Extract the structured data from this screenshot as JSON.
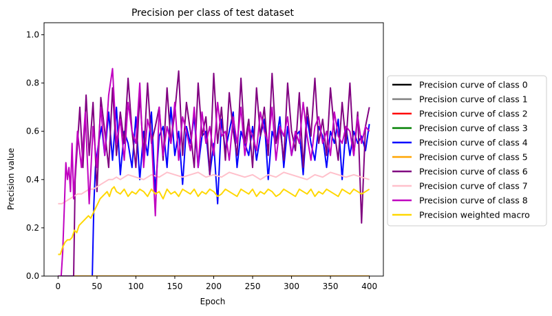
{
  "chart_data": {
    "type": "line",
    "title": "Precision per class of test dataset",
    "xlabel": "Epoch",
    "ylabel": "Precision value",
    "xlim": [
      -18,
      418
    ],
    "ylim": [
      0.0,
      1.05
    ],
    "xticks": [
      0,
      50,
      100,
      150,
      200,
      250,
      300,
      350,
      400
    ],
    "yticks": [
      0.0,
      0.2,
      0.4,
      0.6,
      0.8,
      1.0
    ],
    "xtick_labels": [
      "0",
      "50",
      "100",
      "150",
      "200",
      "250",
      "300",
      "350",
      "400"
    ],
    "ytick_labels": [
      "0.0",
      "0.2",
      "0.4",
      "0.6",
      "0.8",
      "1.0"
    ],
    "grid": false,
    "legend_position": "outside-right",
    "series": [
      {
        "name": "Precision curve of class 0",
        "color": "#000000",
        "x": [
          0,
          400
        ],
        "y": [
          0.0,
          0.0
        ]
      },
      {
        "name": "Precision curve of class 1",
        "color": "#808080",
        "x": [
          0,
          400
        ],
        "y": [
          0.0,
          0.0
        ]
      },
      {
        "name": "Precision curve of class 2",
        "color": "#ff0000",
        "x": [
          0,
          400
        ],
        "y": [
          0.0,
          0.0
        ]
      },
      {
        "name": "Precision curve of class 3",
        "color": "#008000",
        "x": [
          0,
          400
        ],
        "y": [
          0.0,
          0.0
        ]
      },
      {
        "name": "Precision curve of class 4",
        "color": "#0000ff",
        "x": [
          0,
          44,
          46,
          48,
          52,
          56,
          60,
          65,
          70,
          75,
          80,
          85,
          90,
          95,
          100,
          105,
          110,
          115,
          120,
          125,
          130,
          135,
          140,
          145,
          150,
          155,
          160,
          165,
          170,
          175,
          180,
          185,
          190,
          195,
          200,
          205,
          210,
          215,
          220,
          225,
          230,
          235,
          240,
          245,
          250,
          255,
          260,
          265,
          270,
          275,
          280,
          285,
          290,
          295,
          300,
          305,
          310,
          315,
          320,
          325,
          330,
          335,
          340,
          345,
          350,
          355,
          360,
          365,
          370,
          375,
          380,
          385,
          390,
          395,
          400
        ],
        "y": [
          0.0,
          0.0,
          0.3,
          0.45,
          0.55,
          0.62,
          0.5,
          0.68,
          0.48,
          0.7,
          0.42,
          0.6,
          0.55,
          0.45,
          0.66,
          0.4,
          0.6,
          0.5,
          0.68,
          0.35,
          0.58,
          0.62,
          0.45,
          0.7,
          0.5,
          0.6,
          0.38,
          0.62,
          0.55,
          0.66,
          0.45,
          0.58,
          0.6,
          0.42,
          0.55,
          0.3,
          0.65,
          0.52,
          0.6,
          0.68,
          0.45,
          0.6,
          0.55,
          0.5,
          0.62,
          0.48,
          0.58,
          0.65,
          0.4,
          0.6,
          0.55,
          0.66,
          0.45,
          0.62,
          0.5,
          0.58,
          0.6,
          0.42,
          0.66,
          0.55,
          0.48,
          0.62,
          0.58,
          0.45,
          0.6,
          0.55,
          0.65,
          0.4,
          0.62,
          0.5,
          0.6,
          0.55,
          0.58,
          0.52,
          0.63
        ]
      },
      {
        "name": "Precision curve of class 5",
        "color": "#ffa500",
        "x": [
          0,
          400
        ],
        "y": [
          0.0,
          0.0
        ]
      },
      {
        "name": "Precision curve of class 6",
        "color": "#800080",
        "x": [
          0,
          20,
          22,
          25,
          28,
          32,
          36,
          40,
          45,
          50,
          55,
          60,
          65,
          70,
          75,
          80,
          85,
          90,
          95,
          100,
          105,
          110,
          115,
          120,
          125,
          130,
          135,
          140,
          145,
          150,
          155,
          160,
          165,
          170,
          175,
          180,
          185,
          190,
          195,
          200,
          205,
          210,
          215,
          220,
          225,
          230,
          235,
          240,
          245,
          250,
          255,
          260,
          265,
          270,
          275,
          280,
          285,
          290,
          295,
          300,
          305,
          310,
          315,
          320,
          325,
          330,
          335,
          340,
          345,
          350,
          355,
          360,
          365,
          370,
          375,
          380,
          385,
          390,
          395,
          400
        ],
        "y": [
          0.0,
          0.0,
          0.4,
          0.55,
          0.7,
          0.45,
          0.75,
          0.5,
          0.72,
          0.35,
          0.74,
          0.6,
          0.45,
          0.78,
          0.5,
          0.68,
          0.55,
          0.82,
          0.6,
          0.45,
          0.75,
          0.5,
          0.8,
          0.55,
          0.62,
          0.7,
          0.48,
          0.78,
          0.55,
          0.68,
          0.85,
          0.5,
          0.72,
          0.6,
          0.45,
          0.8,
          0.58,
          0.66,
          0.42,
          0.84,
          0.55,
          0.7,
          0.48,
          0.76,
          0.6,
          0.5,
          0.82,
          0.55,
          0.65,
          0.45,
          0.78,
          0.58,
          0.7,
          0.5,
          0.84,
          0.55,
          0.62,
          0.48,
          0.8,
          0.6,
          0.52,
          0.76,
          0.45,
          0.7,
          0.58,
          0.82,
          0.55,
          0.65,
          0.5,
          0.78,
          0.6,
          0.48,
          0.72,
          0.55,
          0.8,
          0.5,
          0.68,
          0.22,
          0.62,
          0.7
        ]
      },
      {
        "name": "Precision curve of class 7",
        "color": "#ffc0cb",
        "x": [
          0,
          5,
          10,
          15,
          20,
          25,
          30,
          35,
          40,
          45,
          50,
          55,
          60,
          65,
          70,
          75,
          80,
          90,
          100,
          110,
          120,
          130,
          140,
          150,
          160,
          170,
          180,
          190,
          200,
          210,
          220,
          230,
          240,
          250,
          260,
          270,
          280,
          290,
          300,
          310,
          320,
          330,
          340,
          350,
          360,
          370,
          380,
          390,
          400
        ],
        "y": [
          0.3,
          0.3,
          0.31,
          0.32,
          0.33,
          0.34,
          0.34,
          0.35,
          0.36,
          0.36,
          0.37,
          0.38,
          0.39,
          0.4,
          0.4,
          0.41,
          0.4,
          0.42,
          0.41,
          0.4,
          0.42,
          0.41,
          0.43,
          0.42,
          0.41,
          0.42,
          0.43,
          0.41,
          0.42,
          0.41,
          0.43,
          0.42,
          0.41,
          0.42,
          0.4,
          0.42,
          0.41,
          0.43,
          0.42,
          0.41,
          0.4,
          0.42,
          0.41,
          0.43,
          0.42,
          0.41,
          0.42,
          0.41,
          0.4
        ]
      },
      {
        "name": "Precision curve of class 8",
        "color": "#c000c0",
        "x": [
          0,
          2,
          4,
          6,
          8,
          10,
          12,
          14,
          16,
          18,
          20,
          25,
          30,
          35,
          40,
          45,
          50,
          55,
          60,
          65,
          70,
          75,
          80,
          85,
          90,
          95,
          100,
          105,
          110,
          115,
          120,
          125,
          130,
          135,
          140,
          145,
          150,
          155,
          160,
          165,
          170,
          175,
          180,
          185,
          190,
          195,
          200,
          205,
          210,
          215,
          220,
          225,
          230,
          235,
          240,
          245,
          250,
          255,
          260,
          265,
          270,
          275,
          280,
          285,
          290,
          295,
          300,
          305,
          310,
          315,
          320,
          325,
          330,
          335,
          340,
          345,
          350,
          355,
          360,
          365,
          370,
          375,
          380,
          385,
          390,
          395,
          400
        ],
        "y": [
          0.0,
          0.0,
          0.0,
          0.1,
          0.28,
          0.47,
          0.4,
          0.45,
          0.35,
          0.55,
          0.32,
          0.6,
          0.45,
          0.68,
          0.3,
          0.62,
          0.45,
          0.7,
          0.5,
          0.75,
          0.86,
          0.55,
          0.65,
          0.48,
          0.72,
          0.6,
          0.55,
          0.8,
          0.45,
          0.65,
          0.58,
          0.25,
          0.7,
          0.5,
          0.62,
          0.55,
          0.72,
          0.48,
          0.66,
          0.6,
          0.52,
          0.7,
          0.45,
          0.68,
          0.55,
          0.62,
          0.5,
          0.72,
          0.58,
          0.6,
          0.48,
          0.66,
          0.55,
          0.7,
          0.5,
          0.62,
          0.58,
          0.52,
          0.68,
          0.6,
          0.55,
          0.7,
          0.48,
          0.62,
          0.58,
          0.66,
          0.5,
          0.6,
          0.55,
          0.72,
          0.58,
          0.48,
          0.62,
          0.66,
          0.55,
          0.6,
          0.5,
          0.68,
          0.58,
          0.55,
          0.62,
          0.6,
          0.5,
          0.66,
          0.55,
          0.62,
          0.6
        ]
      },
      {
        "name": "Precision weighted macro",
        "color": "#ffd700",
        "x": [
          0,
          3,
          6,
          9,
          12,
          15,
          18,
          21,
          24,
          27,
          30,
          33,
          36,
          39,
          42,
          45,
          48,
          51,
          54,
          57,
          60,
          63,
          66,
          69,
          72,
          75,
          80,
          85,
          90,
          95,
          100,
          105,
          110,
          115,
          120,
          125,
          130,
          135,
          140,
          145,
          150,
          155,
          160,
          165,
          170,
          175,
          180,
          185,
          190,
          195,
          200,
          205,
          210,
          215,
          220,
          225,
          230,
          235,
          240,
          245,
          250,
          255,
          260,
          265,
          270,
          275,
          280,
          285,
          290,
          295,
          300,
          305,
          310,
          315,
          320,
          325,
          330,
          335,
          340,
          345,
          350,
          355,
          360,
          365,
          370,
          375,
          380,
          385,
          390,
          395,
          400
        ],
        "y": [
          0.09,
          0.09,
          0.12,
          0.14,
          0.15,
          0.15,
          0.16,
          0.19,
          0.18,
          0.21,
          0.22,
          0.23,
          0.24,
          0.25,
          0.24,
          0.26,
          0.28,
          0.3,
          0.32,
          0.33,
          0.34,
          0.35,
          0.33,
          0.36,
          0.37,
          0.35,
          0.34,
          0.36,
          0.33,
          0.35,
          0.34,
          0.36,
          0.35,
          0.33,
          0.36,
          0.34,
          0.35,
          0.32,
          0.36,
          0.34,
          0.35,
          0.33,
          0.36,
          0.35,
          0.34,
          0.36,
          0.33,
          0.35,
          0.34,
          0.36,
          0.35,
          0.33,
          0.34,
          0.36,
          0.35,
          0.34,
          0.33,
          0.36,
          0.35,
          0.34,
          0.36,
          0.33,
          0.35,
          0.34,
          0.36,
          0.35,
          0.33,
          0.34,
          0.36,
          0.35,
          0.34,
          0.33,
          0.36,
          0.35,
          0.34,
          0.36,
          0.33,
          0.35,
          0.34,
          0.36,
          0.35,
          0.34,
          0.33,
          0.36,
          0.35,
          0.34,
          0.36,
          0.35,
          0.34,
          0.35,
          0.36
        ]
      }
    ]
  }
}
